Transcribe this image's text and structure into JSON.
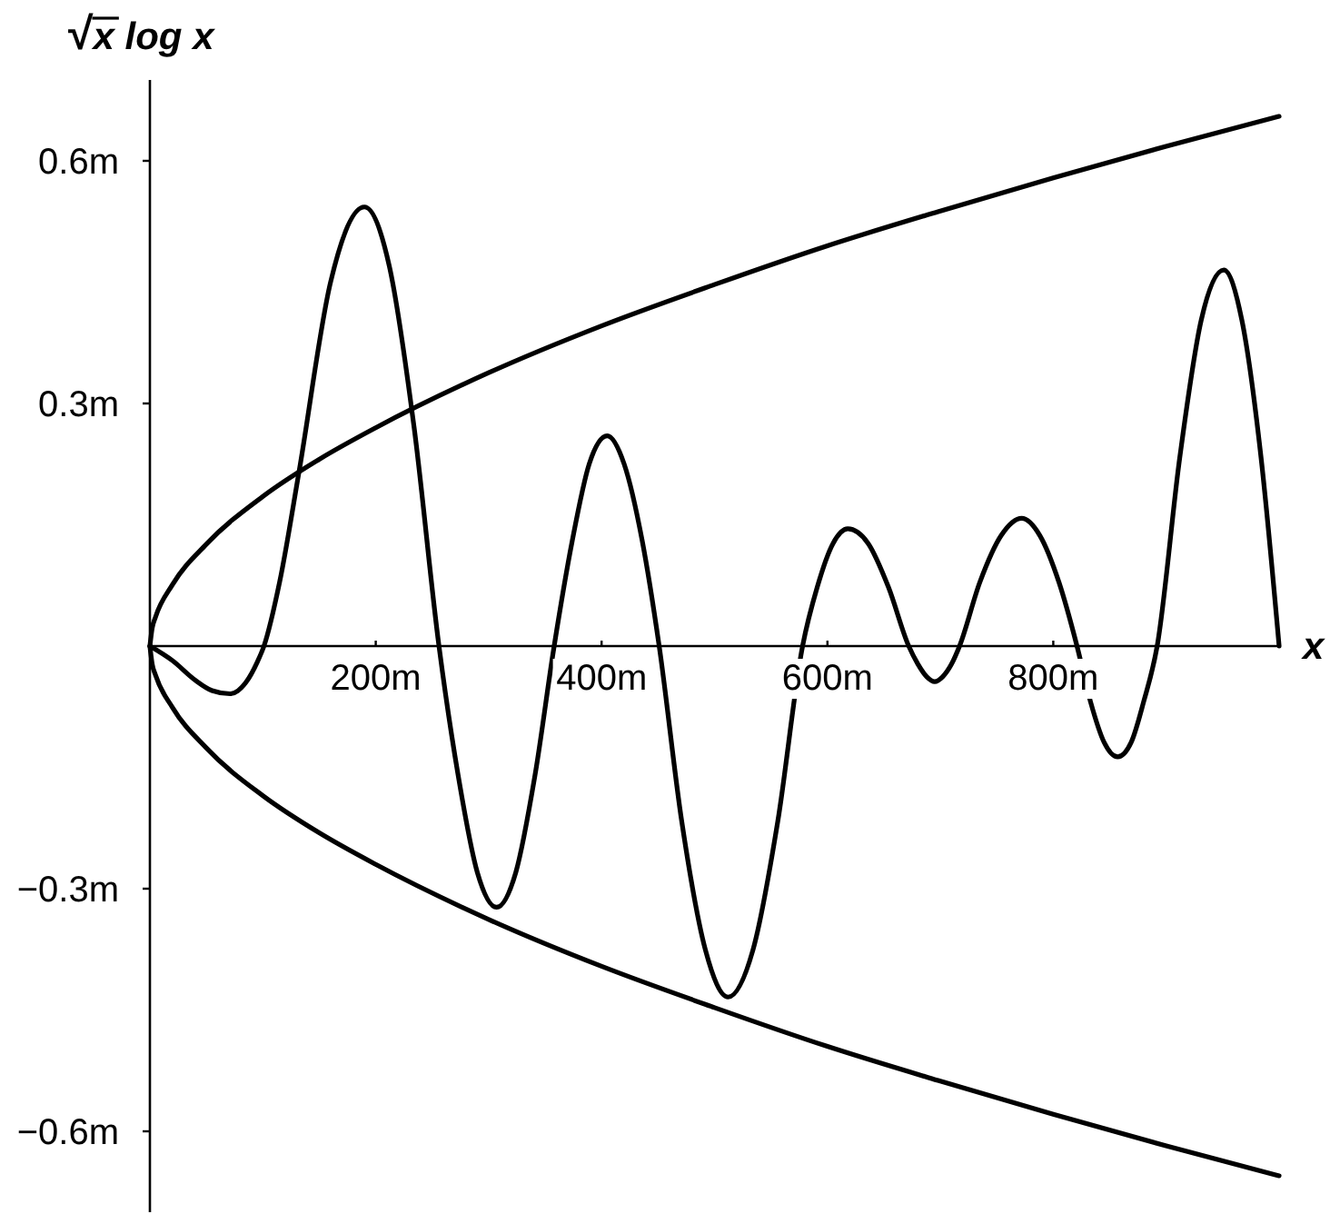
{
  "chart_data": {
    "type": "line",
    "xlabel": "x",
    "ylabel": "√x log x",
    "xlim": [
      0,
      1000
    ],
    "ylim": [
      -0.7,
      0.7
    ],
    "xticks": [
      {
        "value": 200,
        "label": "200m"
      },
      {
        "value": 400,
        "label": "400m"
      },
      {
        "value": 600,
        "label": "600m"
      },
      {
        "value": 800,
        "label": "800m"
      }
    ],
    "yticks": [
      {
        "value": -0.6,
        "label": "−0.6m"
      },
      {
        "value": -0.3,
        "label": "−0.3m"
      },
      {
        "value": 0.3,
        "label": "0.3m"
      },
      {
        "value": 0.6,
        "label": "0.6m"
      }
    ],
    "series": [
      {
        "color": "#000000",
        "x": [
          0,
          2,
          5,
          20,
          50,
          100,
          150,
          200,
          300,
          400,
          500,
          600,
          700,
          800,
          900,
          1000
        ],
        "values": [
          0,
          0.022,
          0.036,
          0.076,
          0.126,
          0.185,
          0.231,
          0.27,
          0.338,
          0.396,
          0.447,
          0.495,
          0.538,
          0.579,
          0.618,
          0.655
        ]
      },
      {
        "color": "#000000",
        "x": [
          0,
          2,
          5,
          20,
          50,
          100,
          150,
          200,
          300,
          400,
          500,
          600,
          700,
          800,
          900,
          1000
        ],
        "values": [
          0,
          -0.022,
          -0.036,
          -0.076,
          -0.126,
          -0.185,
          -0.231,
          -0.27,
          -0.338,
          -0.396,
          -0.447,
          -0.495,
          -0.538,
          -0.579,
          -0.618,
          -0.655
        ]
      },
      {
        "color": "#000000",
        "x": [
          0,
          20,
          40,
          55,
          71,
          85,
          95,
          101,
          115,
          132,
          160,
          190,
          212,
          234,
          256,
          273,
          290,
          307,
          324,
          341,
          358,
          374,
          389,
          405,
          420,
          436,
          451,
          471,
          492,
          512,
          534,
          556,
          578,
          591,
          605,
          618,
          636,
          654,
          672,
          680,
          688,
          695,
          702,
          710,
          717,
          735,
          754,
          772,
          788,
          805,
          821,
          833,
          845,
          857,
          869,
          880,
          892,
          912,
          931,
          951,
          967,
          984,
          1000
        ],
        "values": [
          0,
          -0.018,
          -0.042,
          -0.055,
          -0.059,
          -0.045,
          -0.02,
          0,
          0.08,
          0.215,
          0.45,
          0.543,
          0.47,
          0.27,
          0,
          -0.16,
          -0.28,
          -0.323,
          -0.28,
          -0.16,
          0,
          0.13,
          0.225,
          0.26,
          0.225,
          0.13,
          0,
          -0.217,
          -0.376,
          -0.434,
          -0.376,
          -0.217,
          0,
          0.073,
          0.127,
          0.145,
          0.127,
          0.073,
          0,
          -0.022,
          -0.038,
          -0.044,
          -0.038,
          -0.022,
          0,
          0.079,
          0.137,
          0.158,
          0.137,
          0.079,
          0,
          -0.069,
          -0.119,
          -0.137,
          -0.119,
          -0.069,
          0,
          0.233,
          0.403,
          0.465,
          0.403,
          0.233,
          0
        ]
      }
    ]
  }
}
